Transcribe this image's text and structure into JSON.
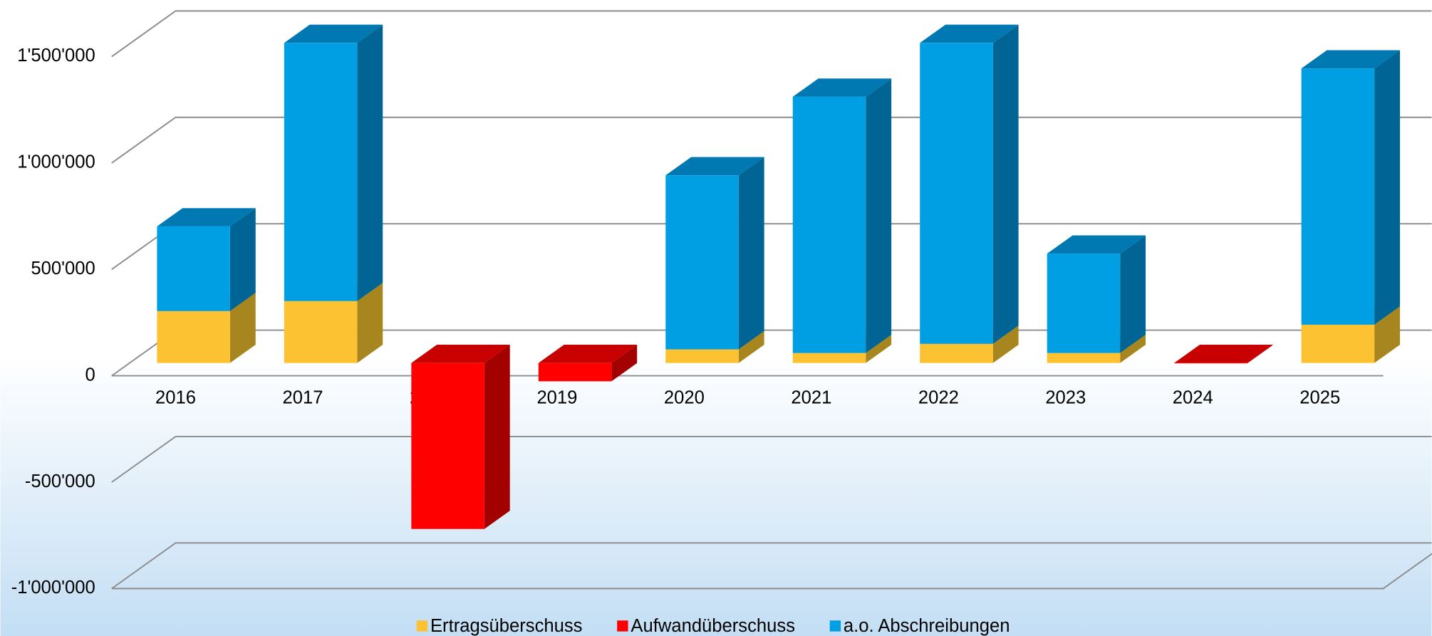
{
  "chart_data": {
    "type": "bar3d_stacked",
    "categories": [
      "2016",
      "2017",
      "2018",
      "2019",
      "2020",
      "2021",
      "2022",
      "2023",
      "2024",
      "2025"
    ],
    "series": [
      {
        "name": "Ertragsüberschuss",
        "color": "#fcc232",
        "side_color": "#a8861f",
        "top_color": "#d9a52a",
        "values": [
          244000,
          291000,
          null,
          null,
          64000,
          47000,
          90000,
          47000,
          null,
          180000
        ]
      },
      {
        "name": "Aufwandüberschuss",
        "color": "#ff0000",
        "side_color": "#a30000",
        "top_color": "#c80000",
        "values": [
          null,
          null,
          -780000,
          -86000,
          null,
          null,
          null,
          null,
          -2000,
          null
        ]
      },
      {
        "name": "a.o. Abschreibungen",
        "color": "#009fe3",
        "side_color": "#006594",
        "top_color": "#0079b2",
        "values": [
          398000,
          1213000,
          null,
          null,
          818000,
          1204000,
          1414000,
          467000,
          null,
          1204000
        ]
      }
    ],
    "ylim": [
      -1000000,
      1500000
    ],
    "yticks": [
      {
        "value": -1000000,
        "label": "-1'000'000"
      },
      {
        "value": -500000,
        "label": "-500'000"
      },
      0,
      {
        "value": 500000,
        "label": "500'000"
      },
      {
        "value": 1000000,
        "label": "1'000'000"
      },
      {
        "value": 1500000,
        "label": "1'500'000"
      }
    ],
    "grid": true,
    "legend": "bottom"
  }
}
